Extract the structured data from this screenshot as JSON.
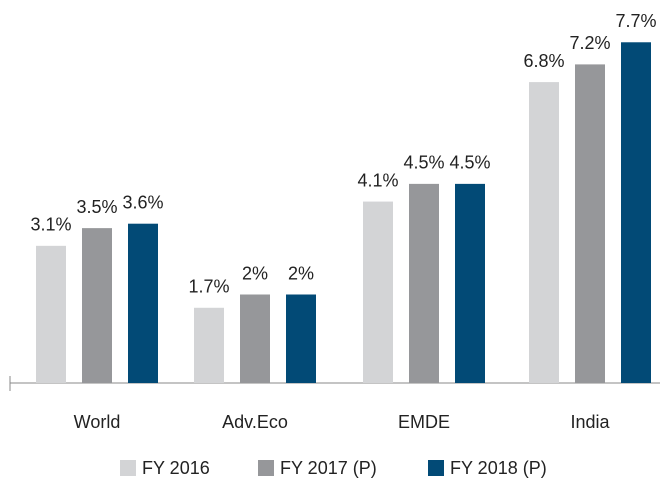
{
  "chart_data": {
    "type": "bar",
    "categories": [
      "World",
      "Adv.Eco",
      "EMDE",
      "India"
    ],
    "series": [
      {
        "name": "FY 2016",
        "color": "#d3d4d6",
        "values": [
          3.1,
          1.7,
          4.1,
          6.8
        ],
        "value_labels": [
          "3.1%",
          "1.7%",
          "4.1%",
          "6.8%"
        ]
      },
      {
        "name": "FY 2017 (P)",
        "color": "#96979a",
        "values": [
          3.5,
          2,
          4.5,
          7.2
        ],
        "value_labels": [
          "3.5%",
          "2%",
          "4.5%",
          "7.2%"
        ]
      },
      {
        "name": "FY 2018 (P)",
        "color": "#024a76",
        "values": [
          3.6,
          2,
          4.5,
          7.7
        ],
        "value_labels": [
          "3.6%",
          "2%",
          "4.5%",
          "7.7%"
        ]
      }
    ],
    "ylim": [
      0,
      8
    ]
  }
}
